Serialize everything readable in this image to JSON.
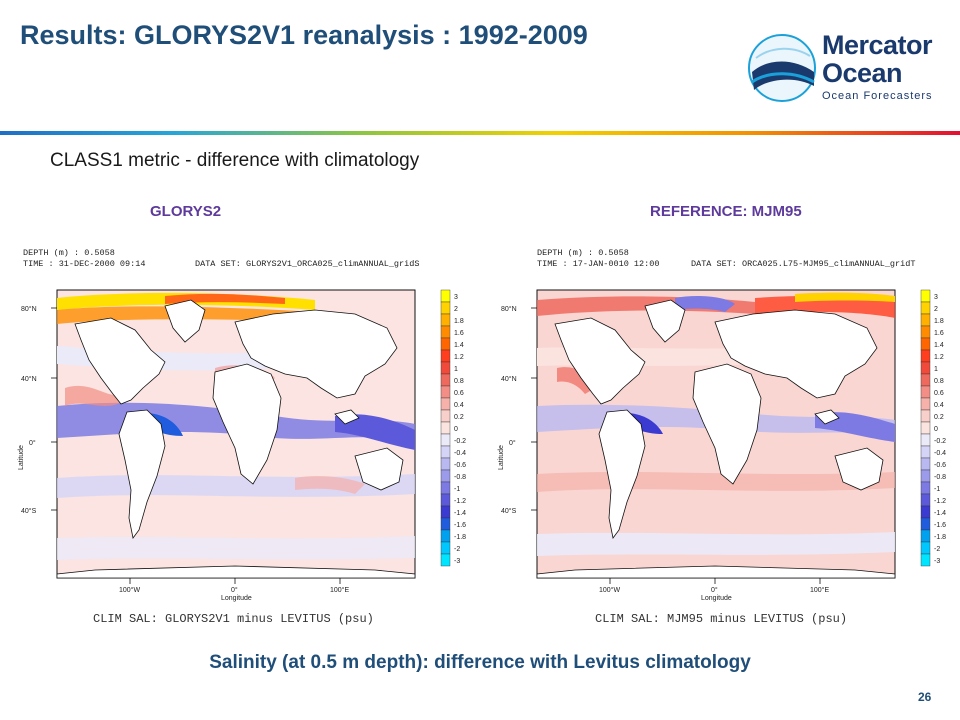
{
  "title": "Results: GLORYS2V1 reanalysis :  1992-2009",
  "logo": {
    "line1": "Mercator",
    "line2": "Ocean",
    "tagline": "Ocean Forecasters"
  },
  "subtitle": "CLASS1 metric - difference with climatology",
  "panel_labels": {
    "left": "GLORYS2",
    "right": "REFERENCE: MJM95"
  },
  "maps": [
    {
      "depth": "DEPTH (m) : 0.5058",
      "time": "TIME : 31-DEC-2000 09:14",
      "dataset": "DATA SET: GLORYS2V1_ORCA025_climANNUAL_gridS",
      "caption": "CLIM SAL: GLORYS2V1 minus LEVITUS (psu)"
    },
    {
      "depth": "DEPTH (m) : 0.5058",
      "time": "TIME : 17-JAN-0010 12:00",
      "dataset": "DATA SET: ORCA025.L75-MJM95_climANNUAL_gridT",
      "caption": "CLIM SAL: MJM95 minus LEVITUS (psu)"
    }
  ],
  "axis": {
    "ylabel": "Latitude",
    "xlabel": "Longitude",
    "lat_ticks": [
      "80°N",
      "40°N",
      "0°",
      "40°S"
    ],
    "lon_ticks": [
      "100°W",
      "0°",
      "100°E"
    ]
  },
  "colorbar": {
    "labels": [
      "3",
      "2",
      "1.8",
      "1.6",
      "1.4",
      "1.2",
      "1",
      "0.8",
      "0.6",
      "0.4",
      "0.2",
      "0",
      "-0.2",
      "-0.4",
      "-0.6",
      "-0.8",
      "-1",
      "-1.2",
      "-1.4",
      "-1.6",
      "-1.8",
      "-2",
      "-3"
    ],
    "colors": [
      "#ffff00",
      "#ffd200",
      "#ffb000",
      "#ff8c00",
      "#ff6600",
      "#ff3d1f",
      "#f24a3a",
      "#ef6a5e",
      "#f28e85",
      "#f5b1aa",
      "#f9cfcb",
      "#fbe3e0",
      "#ebeaf9",
      "#d4d4f7",
      "#b9b8f1",
      "#9b9aeb",
      "#7d7be3",
      "#5c5ada",
      "#3b3ad1",
      "#1f5cde",
      "#00a2f0",
      "#00c8ff",
      "#00e5ff"
    ]
  },
  "caption": "Salinity (at 0.5 m depth): difference with Levitus climatology",
  "page_number": "26"
}
